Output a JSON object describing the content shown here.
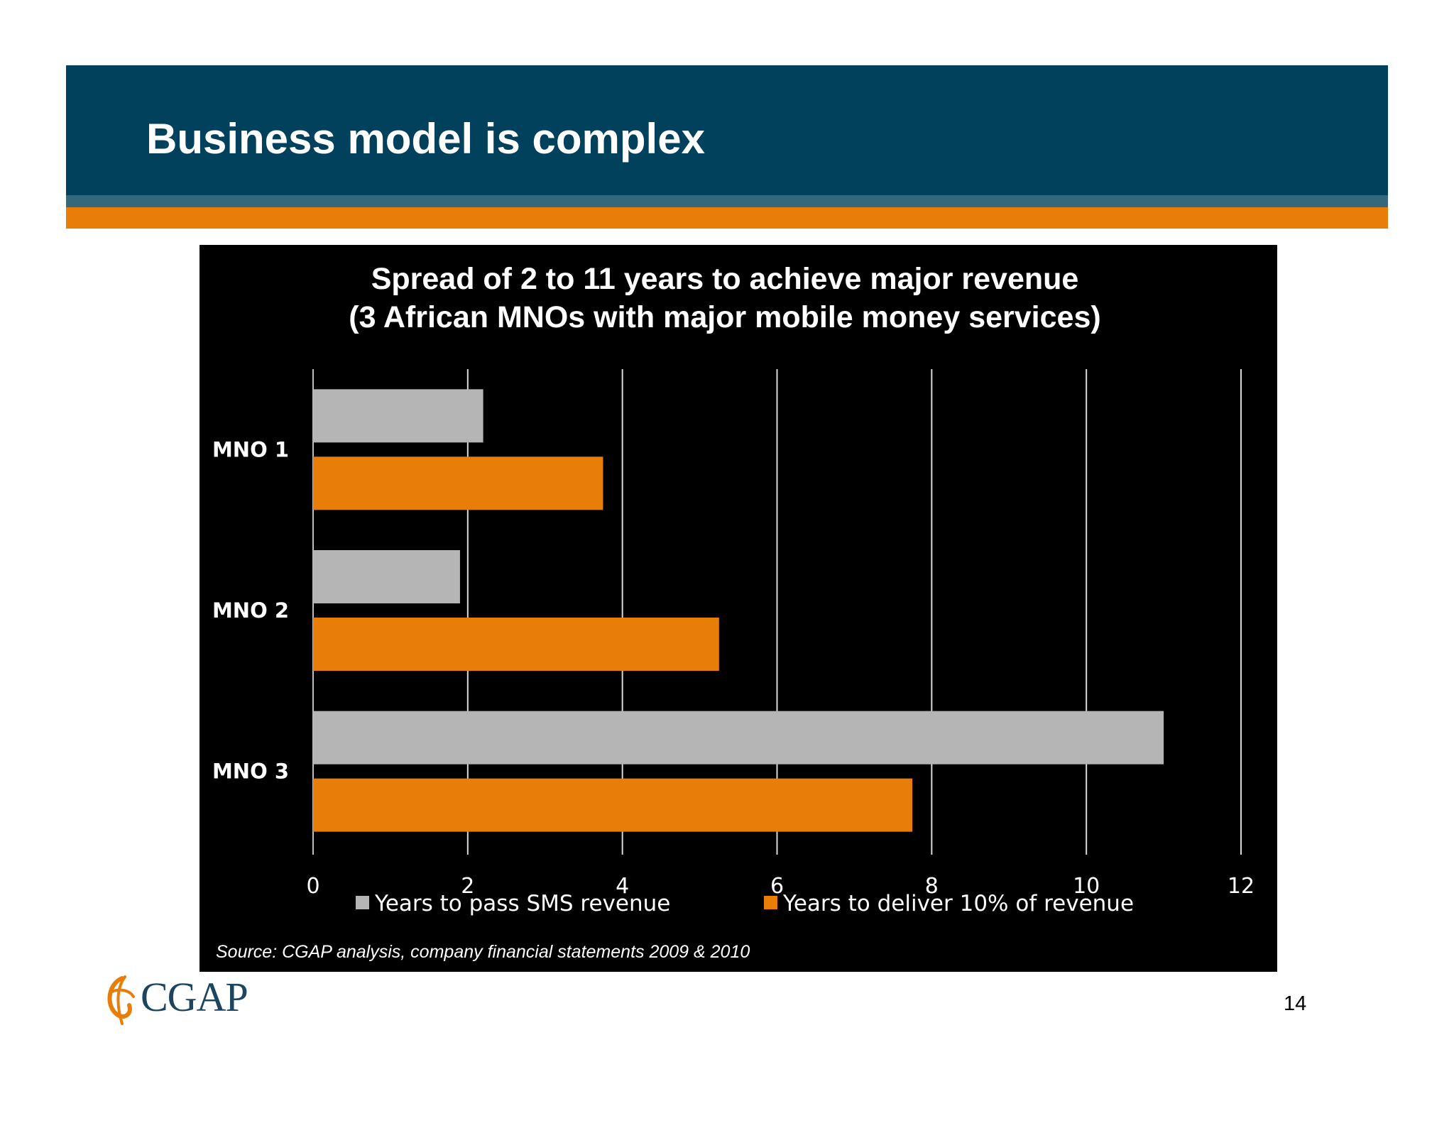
{
  "slide": {
    "title": "Business model is complex",
    "page_number": "14",
    "logo_text": "CGAP"
  },
  "colors": {
    "header_blue": "#02415c",
    "header_stripe": "#36687c",
    "header_orange": "#e87d07",
    "series_gray": "#b6b5b5",
    "series_orange": "#e87d07"
  },
  "chart_data": {
    "type": "bar",
    "orientation": "horizontal",
    "title_lines": [
      "Spread of 2 to 11 years to achieve major revenue",
      "(3 African MNOs with major mobile money services)"
    ],
    "categories": [
      "MNO 1",
      "MNO 2",
      "MNO 3"
    ],
    "series": [
      {
        "name": "Years to pass SMS revenue",
        "values": [
          2.2,
          1.9,
          11.0
        ],
        "color": "#b6b5b5"
      },
      {
        "name": "Years to deliver 10% of revenue",
        "values": [
          3.75,
          5.25,
          7.75
        ],
        "color": "#e87d07"
      }
    ],
    "xlim": [
      0,
      12
    ],
    "xticks": [
      "0",
      "2",
      "4",
      "6",
      "8",
      "10",
      "12"
    ],
    "grid": true,
    "legend_position": "bottom",
    "source": "Source: CGAP analysis, company financial statements 2009 & 2010"
  }
}
